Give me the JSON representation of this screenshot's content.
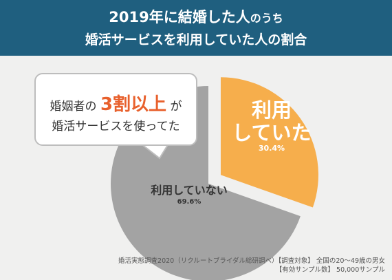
{
  "header": {
    "line1_main": "2019年に結婚した人",
    "line1_tail": "のうち",
    "line2": "婚活サービスを利用していた人の割合"
  },
  "callout": {
    "row1_pre": "婚姻者の",
    "row1_highlight": "3割以上",
    "row1_post": "が",
    "row2": "婚活サービスを使ってた"
  },
  "chart_data": {
    "type": "pie",
    "slices": [
      {
        "label": "利用していた",
        "value": 30.4,
        "display": "30.4%",
        "color": "#f6ae4c",
        "exploded": true
      },
      {
        "label": "利用していない",
        "value": 69.6,
        "display": "69.6%",
        "color": "#a3a3a3",
        "exploded": false
      }
    ],
    "used_label_line1": "利用",
    "used_label_line2": "していた"
  },
  "source": {
    "line1": "婚活実態調査2020（リクルートブライダル総研調べ）【調査対象】 全国の20～49歳の男女",
    "line2": "【有効サンプル数】 50,000サンプル"
  },
  "colors": {
    "header_bg": "#1f5f7f",
    "accent": "#e8602c",
    "background": "#f0f0ef"
  }
}
